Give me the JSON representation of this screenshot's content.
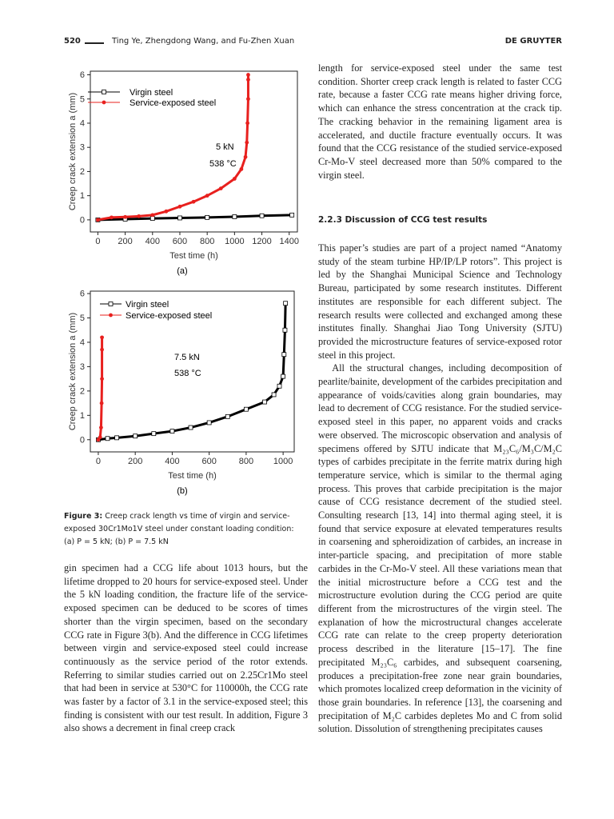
{
  "header": {
    "page_number": "520",
    "authors": "Ting Ye, Zhengdong Wang, and Fu-Zhen Xuan",
    "publisher": "DE GRUYTER"
  },
  "chart_data": [
    {
      "type": "line",
      "panel_label": "(a)",
      "x_label": "Test time (h)",
      "y_label": "Creep crack extension a (mm)",
      "annotations": [
        "5 kN",
        "538 °C"
      ],
      "legend": "upper left",
      "xlim": [
        -55,
        1460
      ],
      "xticks": [
        0,
        200,
        400,
        600,
        800,
        1000,
        1200,
        1400
      ],
      "ylim": [
        -0.5,
        6.15
      ],
      "yticks": [
        0,
        1,
        2,
        3,
        4,
        5,
        6
      ],
      "series": [
        {
          "name": "Virgin steel",
          "color": "#000000",
          "marker": "open-square",
          "x": [
            0,
            200,
            400,
            600,
            800,
            1000,
            1200,
            1420
          ],
          "values": [
            0,
            0.03,
            0.06,
            0.08,
            0.1,
            0.13,
            0.17,
            0.2
          ]
        },
        {
          "name": "Service-exposed steel",
          "color": "#e8201e",
          "marker": "filled-circle",
          "x": [
            0,
            100,
            200,
            300,
            400,
            500,
            600,
            700,
            800,
            900,
            1000,
            1050,
            1080,
            1090,
            1095,
            1100,
            1100,
            1100
          ],
          "values": [
            0,
            0.1,
            0.12,
            0.15,
            0.2,
            0.35,
            0.55,
            0.75,
            1.0,
            1.3,
            1.7,
            2.1,
            2.6,
            3.2,
            4.0,
            5.0,
            5.8,
            6.0
          ]
        }
      ]
    },
    {
      "type": "line",
      "panel_label": "(b)",
      "x_label": "Test time (h)",
      "y_label": "Creep crack extension a (mm)",
      "annotations": [
        "7.5 kN",
        "538 °C"
      ],
      "legend": "upper left",
      "xlim": [
        -43,
        1060
      ],
      "xticks": [
        0,
        200,
        400,
        600,
        800,
        1000
      ],
      "ylim": [
        -0.5,
        6.1
      ],
      "yticks": [
        0,
        1,
        2,
        3,
        4,
        5,
        6
      ],
      "series": [
        {
          "name": "Virgin steel",
          "color": "#000000",
          "marker": "open-square",
          "x": [
            0,
            50,
            100,
            200,
            300,
            400,
            500,
            600,
            700,
            800,
            900,
            950,
            980,
            1000,
            1005,
            1010,
            1013
          ],
          "values": [
            0,
            0.05,
            0.08,
            0.15,
            0.25,
            0.35,
            0.5,
            0.7,
            0.95,
            1.25,
            1.55,
            1.85,
            2.2,
            2.6,
            3.5,
            4.5,
            5.6
          ]
        },
        {
          "name": "Service-exposed steel",
          "color": "#e8201e",
          "marker": "filled-circle",
          "x": [
            0,
            10,
            15,
            18,
            20,
            20,
            20
          ],
          "values": [
            0,
            0.1,
            0.5,
            1.5,
            2.5,
            3.7,
            4.2
          ]
        }
      ]
    }
  ],
  "figure": {
    "caption_label": "Figure 3:",
    "caption_text": "Creep crack length vs time of virgin and service-exposed 30Cr1Mo1V steel under constant loading condition: (a) P = 5 kN; (b) P = 7.5 kN"
  },
  "left_column": {
    "paragraph": "gin specimen had a CCG life about 1013 hours, but the lifetime dropped to 20 hours for service-exposed steel. Under the 5 kN loading condition, the fracture life of the service-exposed specimen can be deduced to be scores of times shorter than the virgin specimen, based on the secondary CCG rate in Figure 3(b). And the difference in CCG lifetimes between virgin and service-exposed steel could increase continuously as the service period of the rotor extends. Referring to similar studies carried out on 2.25Cr1Mo steel that had been in service at 530°C for 110000h, the CCG rate was faster by a factor of 3.1 in the service-exposed steel; this finding is consistent with our test result. In addition, Figure 3 also shows a decrement in final creep crack"
  },
  "right_column": {
    "paragraph_1": "length for service-exposed steel under the same test condition. Shorter creep crack length is related to faster CCG rate, because a faster CCG rate means higher driving force, which can enhance the stress concentration at the crack tip. The cracking behavior in the remaining ligament area is accelerated, and ductile fracture eventually occurs. It was found that the CCG resistance of the studied service-exposed Cr-Mo-V steel decreased more than 50% compared to the virgin steel.",
    "heading": "2.2.3 Discussion of CCG test results",
    "paragraph_2": "This paper’s studies are part of a project named “Anatomy study of the steam turbine HP/IP/LP rotors”. This project is led by the Shanghai Municipal Science and Technology Bureau, participated by some research institutes. Different institutes are responsible for each different subject. The research results were collected and exchanged among these institutes finally. Shanghai Jiao Tong University (SJTU) provided the microstructure features of service-exposed rotor steel in this project.",
    "paragraph_3": "All the structural changes, including decomposition of pearlite/bainite, development of the carbides precipitation and appearance of voids/cavities along grain boundaries, may lead to decrement of CCG resistance. For the studied service-exposed steel in this paper, no apparent voids and cracks were observed. The microscopic observation and analysis of specimens offered by SJTU indicate that M₂₃C₆/M₃C/M₂C types of carbides precipitate in the ferrite matrix during high temperature service, which is similar to the thermal aging process. This proves that carbide precipitation is the major cause of CCG resistance decrement of the studied steel. Consulting research [13, 14] into thermal aging steel, it is found that service exposure at elevated temperatures results in coarsening and spheroidization of carbides, an increase in inter-particle spacing, and precipitation of more stable carbides in the Cr-Mo-V steel. All these variations mean that the initial microstructure before a CCG test and the microstructure evolution during the CCG period are quite different from the microstructures of the virgin steel. The explanation of how the microstructural changes accelerate CCG rate can relate to the creep property deterioration process described in the literature [15–17]. The fine precipitated M₂₃C₆ carbides, and subsequent coarsening, produces a precipitation-free zone near grain boundaries, which promotes localized creep deformation in the vicinity of those grain boundaries. In reference [13], the coarsening and precipitation of M₂C carbides depletes Mo and C from solid solution. Dissolution of strengthening precipitates causes"
  }
}
